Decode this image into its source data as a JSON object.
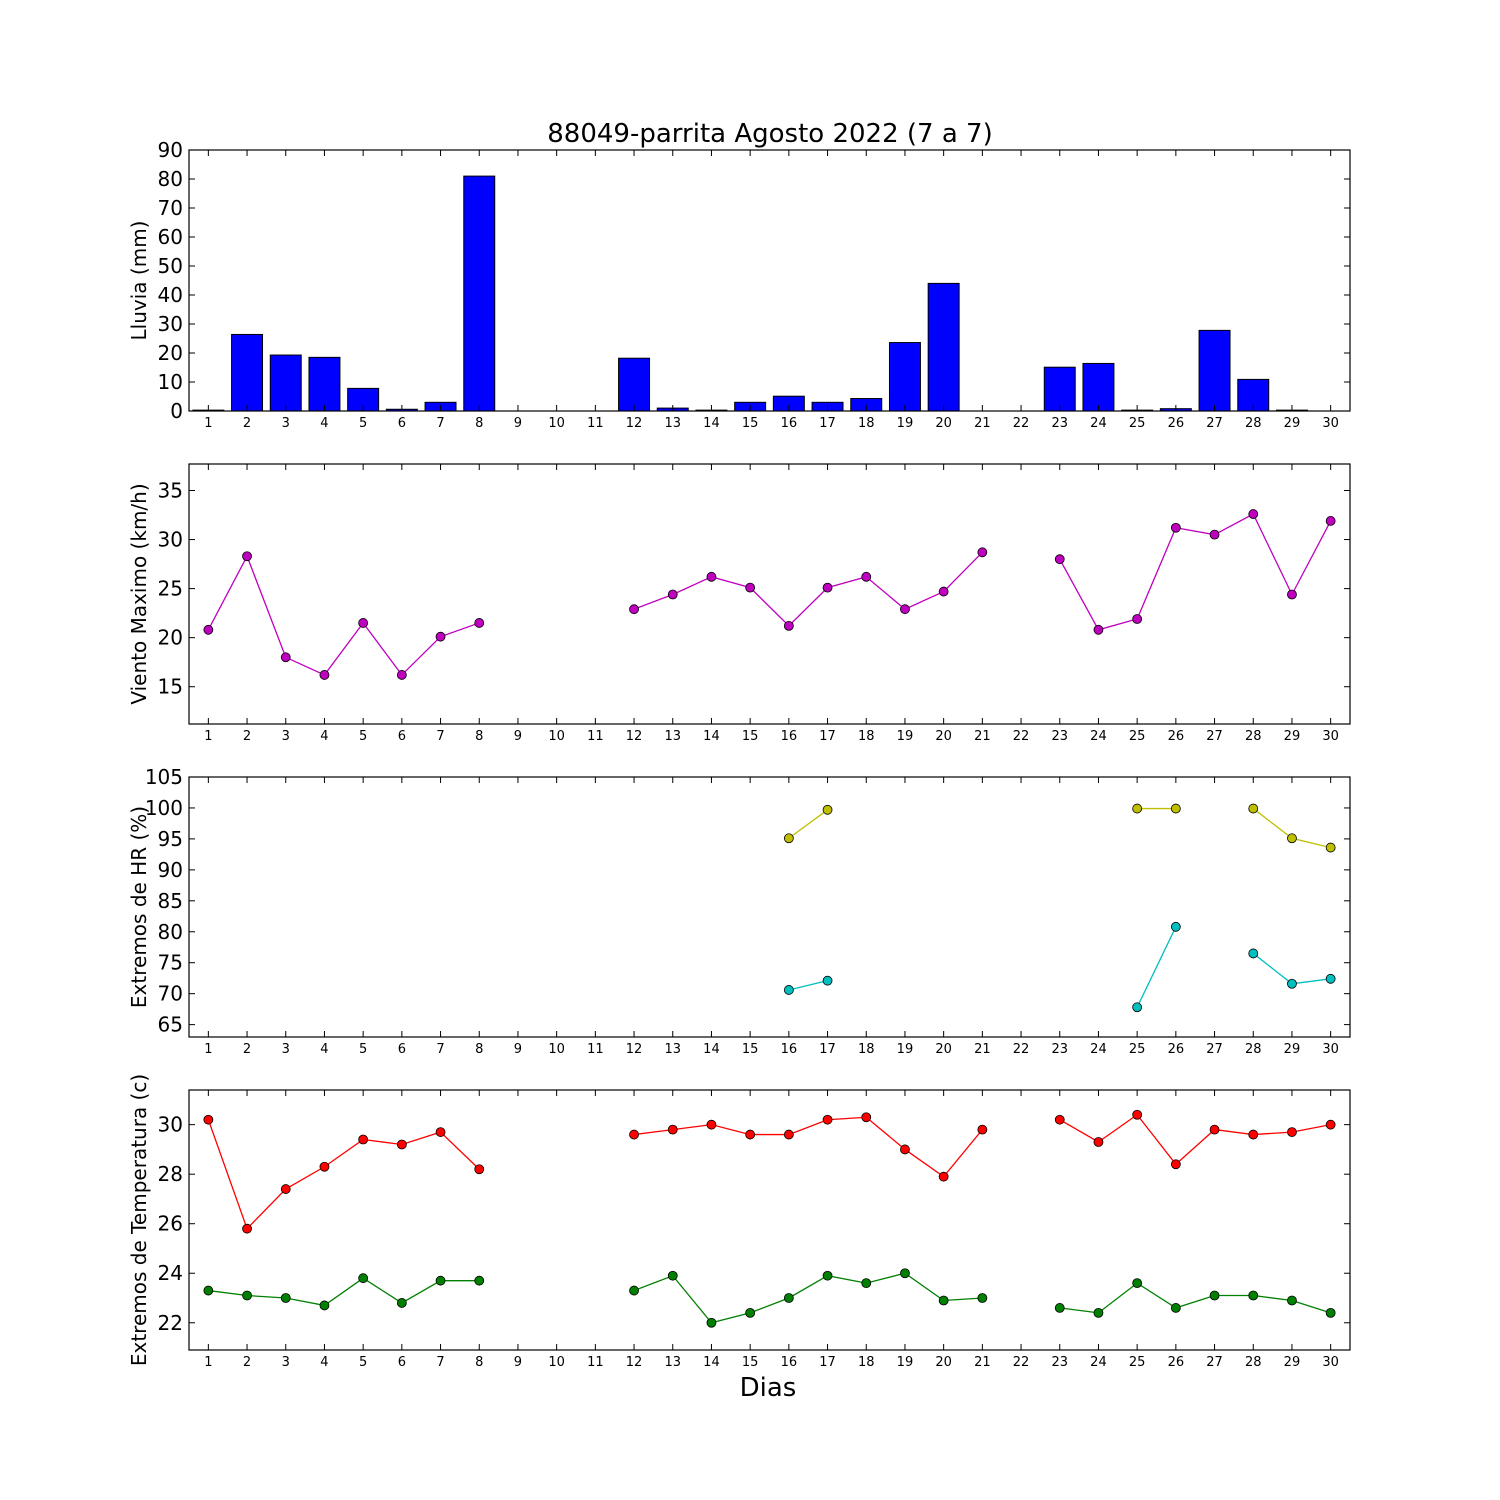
{
  "figure": {
    "title": "88049-parrita Agosto 2022  (7 a 7)",
    "xlabel": "Dias"
  },
  "chart_data": [
    {
      "type": "bar",
      "ylabel": "Lluvia (mm)",
      "ylim": [
        0,
        90
      ],
      "yticks": [
        0,
        10,
        20,
        30,
        40,
        50,
        60,
        70,
        80,
        90
      ],
      "x": [
        1,
        2,
        3,
        4,
        5,
        6,
        7,
        8,
        9,
        10,
        11,
        12,
        13,
        14,
        15,
        16,
        17,
        18,
        19,
        20,
        21,
        22,
        23,
        24,
        25,
        26,
        27,
        28,
        29,
        30
      ],
      "series": [
        {
          "color": "#0000ff",
          "values": [
            0.3,
            26.4,
            19.3,
            18.5,
            7.8,
            0.6,
            3.0,
            81.0,
            0,
            0,
            0,
            18.2,
            1.0,
            0.3,
            3.0,
            5.1,
            3.0,
            4.3,
            23.6,
            44.0,
            0,
            0,
            15.1,
            16.4,
            0.3,
            0.8,
            27.8,
            10.9,
            0.3,
            0
          ]
        }
      ]
    },
    {
      "type": "line",
      "ylabel": "Viento Maximo (km/h)",
      "ylim": [
        11.2,
        37.7
      ],
      "yticks": [
        15,
        20,
        25,
        30,
        35
      ],
      "x": [
        1,
        2,
        3,
        4,
        5,
        6,
        7,
        8,
        9,
        10,
        11,
        12,
        13,
        14,
        15,
        16,
        17,
        18,
        19,
        20,
        21,
        22,
        23,
        24,
        25,
        26,
        27,
        28,
        29,
        30
      ],
      "series": [
        {
          "color": "#bf00bf",
          "values": [
            20.8,
            28.3,
            18.0,
            16.2,
            21.5,
            16.2,
            20.1,
            21.5,
            null,
            null,
            null,
            22.9,
            24.4,
            26.2,
            25.1,
            21.2,
            25.1,
            26.2,
            22.9,
            24.7,
            28.7,
            null,
            28.0,
            20.8,
            21.9,
            31.2,
            30.5,
            32.6,
            24.4,
            31.9
          ]
        }
      ]
    },
    {
      "type": "line",
      "ylabel": "Extremos de HR (%)",
      "ylim": [
        63,
        105
      ],
      "yticks": [
        65,
        70,
        75,
        80,
        85,
        90,
        95,
        100,
        105
      ],
      "x": [
        1,
        2,
        3,
        4,
        5,
        6,
        7,
        8,
        9,
        10,
        11,
        12,
        13,
        14,
        15,
        16,
        17,
        18,
        19,
        20,
        21,
        22,
        23,
        24,
        25,
        26,
        27,
        28,
        29,
        30
      ],
      "series": [
        {
          "color": "#bfbf00",
          "values": [
            null,
            null,
            null,
            null,
            null,
            null,
            null,
            null,
            null,
            null,
            null,
            null,
            null,
            null,
            null,
            95.1,
            99.7,
            null,
            null,
            null,
            null,
            null,
            null,
            null,
            99.9,
            99.9,
            null,
            99.9,
            95.1,
            93.6
          ]
        },
        {
          "color": "#00bfbf",
          "values": [
            null,
            null,
            null,
            null,
            null,
            null,
            null,
            null,
            null,
            null,
            null,
            null,
            null,
            null,
            null,
            70.6,
            72.1,
            null,
            null,
            null,
            null,
            null,
            null,
            null,
            67.8,
            80.8,
            null,
            76.5,
            71.6,
            72.4
          ]
        }
      ]
    },
    {
      "type": "line",
      "ylabel": "Extremos de Temperatura (c)",
      "ylim": [
        20.9,
        31.4
      ],
      "yticks": [
        22,
        24,
        26,
        28,
        30
      ],
      "x": [
        1,
        2,
        3,
        4,
        5,
        6,
        7,
        8,
        9,
        10,
        11,
        12,
        13,
        14,
        15,
        16,
        17,
        18,
        19,
        20,
        21,
        22,
        23,
        24,
        25,
        26,
        27,
        28,
        29,
        30
      ],
      "series": [
        {
          "color": "#ff0000",
          "values": [
            30.2,
            25.8,
            27.4,
            28.3,
            29.4,
            29.2,
            29.7,
            28.2,
            null,
            null,
            null,
            29.6,
            29.8,
            30.0,
            29.6,
            29.6,
            30.2,
            30.3,
            29.0,
            27.9,
            29.8,
            null,
            30.2,
            29.3,
            30.4,
            28.4,
            29.8,
            29.6,
            29.7,
            30.0
          ]
        },
        {
          "color": "#008000",
          "values": [
            23.3,
            23.1,
            23.0,
            22.7,
            23.8,
            22.8,
            23.7,
            23.7,
            null,
            null,
            null,
            23.3,
            23.9,
            22.0,
            22.4,
            23.0,
            23.9,
            23.6,
            24.0,
            22.9,
            23.0,
            null,
            22.6,
            22.4,
            23.6,
            22.6,
            23.1,
            23.1,
            22.9,
            22.4
          ]
        }
      ]
    }
  ]
}
